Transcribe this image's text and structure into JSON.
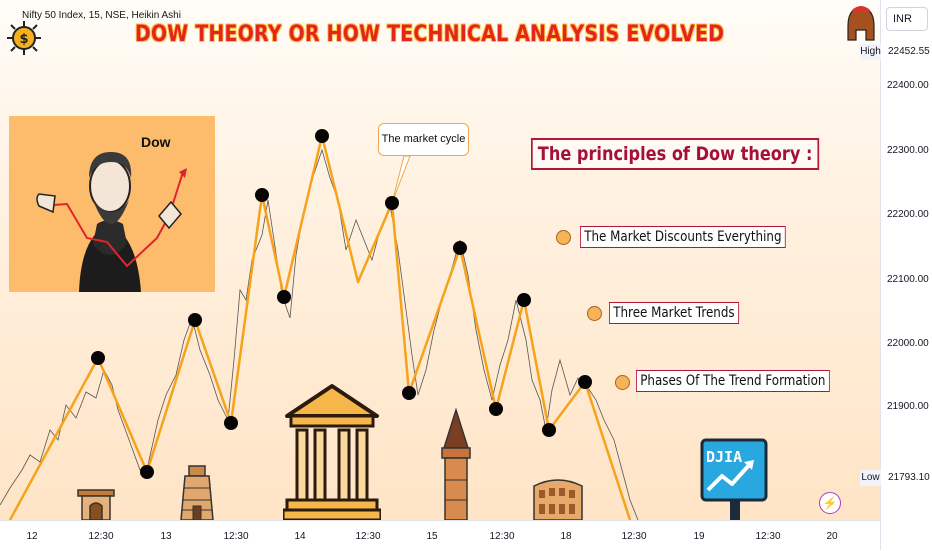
{
  "header": {
    "symbol": "Nifty 50 Index, 15, NSE, Heikin Ashi",
    "headline": "DOW THEORY OR HOW TECHNICAL ANALYSIS EVOLVED"
  },
  "dow_card": {
    "label": "Dow"
  },
  "callout": {
    "text": "The market cycle"
  },
  "principles": {
    "title": "The principles of Dow theory :",
    "items": [
      "The Market Discounts Everything",
      "Three Market Trends",
      "Phases Of The Trend Formation"
    ]
  },
  "price_axis": {
    "currency": "INR",
    "ticks": [
      "22400.00",
      "22300.00",
      "22200.00",
      "22100.00",
      "22000.00",
      "21900.00"
    ],
    "high_label": "High",
    "high_value": "22452.55",
    "low_label": "Low",
    "low_value": "21793.10"
  },
  "time_axis": {
    "ticks": [
      "12",
      "12:30",
      "13",
      "12:30",
      "14",
      "12:30",
      "15",
      "12:30",
      "18",
      "12:30",
      "19",
      "12:30",
      "20"
    ]
  },
  "overlay": {
    "djia_label": "DJIA"
  },
  "colors": {
    "cycle_line": "#f7a21b",
    "price_line": "#555555",
    "headline": "#e3261b",
    "principle_border": "#b0173a"
  },
  "icons": [
    "logo-icon",
    "helmet-icon",
    "lightning-icon",
    "temple-icon",
    "tower-icon",
    "pyramid-icon",
    "colosseum-icon",
    "gate-icon",
    "djia-board-icon"
  ]
}
